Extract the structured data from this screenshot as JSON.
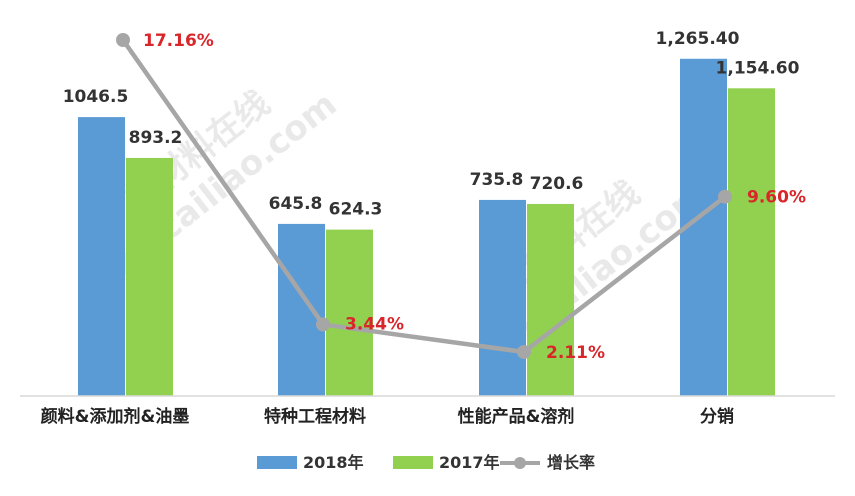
{
  "chart_data": {
    "type": "bar",
    "categories": [
      "颜料&添加剂&油墨",
      "特种工程材料",
      "性能产品&溶剂",
      "分销"
    ],
    "series": [
      {
        "name": "2018年",
        "kind": "bar",
        "color": "#5b9bd5",
        "values": [
          1046.5,
          645.8,
          735.8,
          1265.4
        ],
        "labels": [
          "1046.5",
          "645.8",
          "735.8",
          "1,265.40"
        ]
      },
      {
        "name": "2017年",
        "kind": "bar",
        "color": "#92d050",
        "values": [
          893.2,
          624.3,
          720.6,
          1154.6
        ],
        "labels": [
          "893.2",
          "624.3",
          "720.6",
          "1,154.60"
        ]
      },
      {
        "name": "增长率",
        "kind": "line",
        "color": "#a6a6a6",
        "label_color": "#d9262b",
        "values": [
          17.16,
          3.44,
          2.11,
          9.6
        ],
        "labels": [
          "17.16%",
          "3.44%",
          "2.11%",
          "9.60%"
        ]
      }
    ],
    "ylim": [
      0,
      1300
    ],
    "secondary_ylim": [
      0,
      18.5
    ],
    "legend": "bottom",
    "grid": false
  },
  "watermark": {
    "lines": [
      "新材料在线",
      "xincailiao.com"
    ]
  }
}
